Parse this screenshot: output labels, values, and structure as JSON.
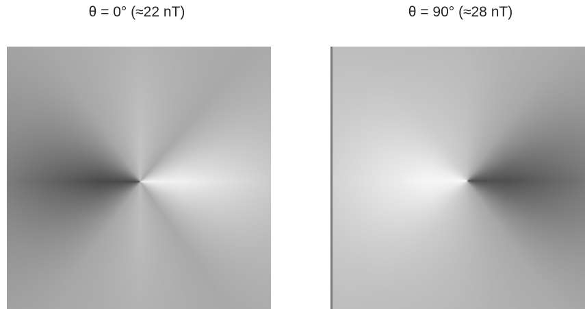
{
  "panels": [
    {
      "title": "θ = 0° (≈22 nT)"
    },
    {
      "title": "θ = 90° (≈28 nT)"
    }
  ]
}
